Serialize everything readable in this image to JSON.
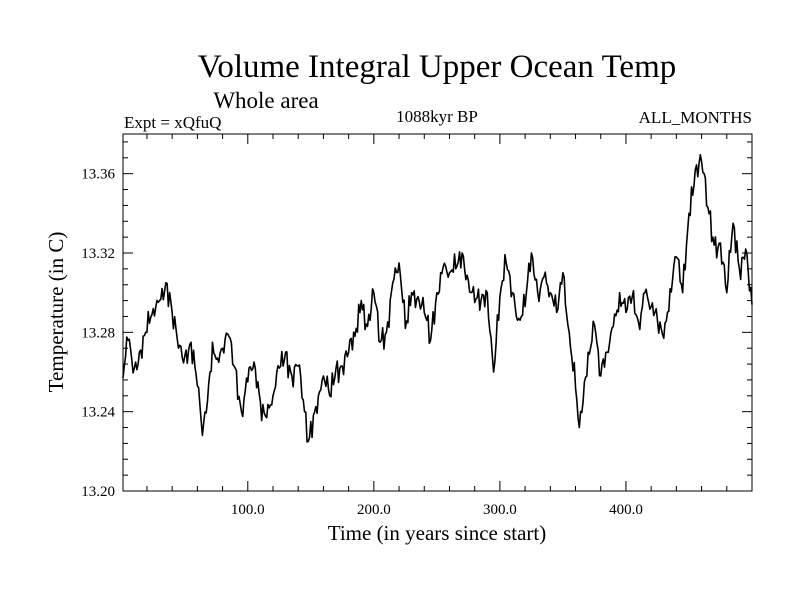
{
  "chart_data": {
    "type": "line",
    "title": "Volume Integral Upper Ocean Temp",
    "subtitle": "Whole area",
    "experiment_label": "Expt = xQfuQ",
    "period_label": "1088kyr BP",
    "months_label": "ALL_MONTHS",
    "xlabel": "Time (in years since start)",
    "ylabel": "Temperature (in C)",
    "xlim": [
      1,
      500
    ],
    "ylim": [
      13.2,
      13.38
    ],
    "x_ticks": [
      100,
      200,
      300,
      400
    ],
    "x_tick_labels": [
      "100.0",
      "200.0",
      "300.0",
      "400.0"
    ],
    "y_ticks": [
      13.2,
      13.24,
      13.28,
      13.32,
      13.36
    ],
    "y_tick_labels": [
      "13.20",
      "13.24",
      "13.28",
      "13.32",
      "13.36"
    ],
    "series": [
      {
        "name": "Volume Integral Upper Ocean Temp",
        "x": [
          1,
          5,
          10,
          15,
          20,
          25,
          30,
          35,
          40,
          45,
          50,
          55,
          60,
          64,
          68,
          72,
          76,
          80,
          85,
          90,
          95,
          100,
          105,
          110,
          115,
          120,
          125,
          130,
          135,
          140,
          145,
          148,
          152,
          156,
          160,
          165,
          170,
          175,
          180,
          185,
          190,
          195,
          200,
          205,
          210,
          215,
          220,
          225,
          230,
          235,
          240,
          245,
          250,
          255,
          260,
          265,
          270,
          275,
          280,
          285,
          290,
          295,
          300,
          305,
          310,
          315,
          320,
          325,
          330,
          335,
          340,
          345,
          350,
          355,
          360,
          363,
          366,
          370,
          375,
          380,
          385,
          390,
          395,
          400,
          405,
          410,
          415,
          420,
          425,
          430,
          435,
          440,
          445,
          450,
          455,
          460,
          465,
          470,
          475,
          480,
          485,
          490,
          495,
          500
        ],
        "values": [
          13.257,
          13.276,
          13.262,
          13.271,
          13.28,
          13.292,
          13.296,
          13.305,
          13.29,
          13.272,
          13.268,
          13.275,
          13.253,
          13.228,
          13.245,
          13.275,
          13.267,
          13.272,
          13.278,
          13.262,
          13.24,
          13.255,
          13.265,
          13.245,
          13.237,
          13.248,
          13.262,
          13.27,
          13.258,
          13.263,
          13.24,
          13.225,
          13.238,
          13.248,
          13.258,
          13.248,
          13.262,
          13.263,
          13.27,
          13.278,
          13.296,
          13.283,
          13.3,
          13.275,
          13.28,
          13.305,
          13.315,
          13.282,
          13.3,
          13.298,
          13.29,
          13.276,
          13.3,
          13.313,
          13.31,
          13.312,
          13.32,
          13.306,
          13.295,
          13.296,
          13.3,
          13.26,
          13.298,
          13.315,
          13.3,
          13.287,
          13.293,
          13.32,
          13.3,
          13.308,
          13.3,
          13.29,
          13.31,
          13.28,
          13.252,
          13.232,
          13.245,
          13.27,
          13.284,
          13.258,
          13.27,
          13.283,
          13.3,
          13.29,
          13.298,
          13.285,
          13.3,
          13.293,
          13.286,
          13.277,
          13.302,
          13.318,
          13.3,
          13.34,
          13.362,
          13.366,
          13.343,
          13.324,
          13.325,
          13.3,
          13.335,
          13.312,
          13.322,
          13.294
        ]
      }
    ]
  }
}
